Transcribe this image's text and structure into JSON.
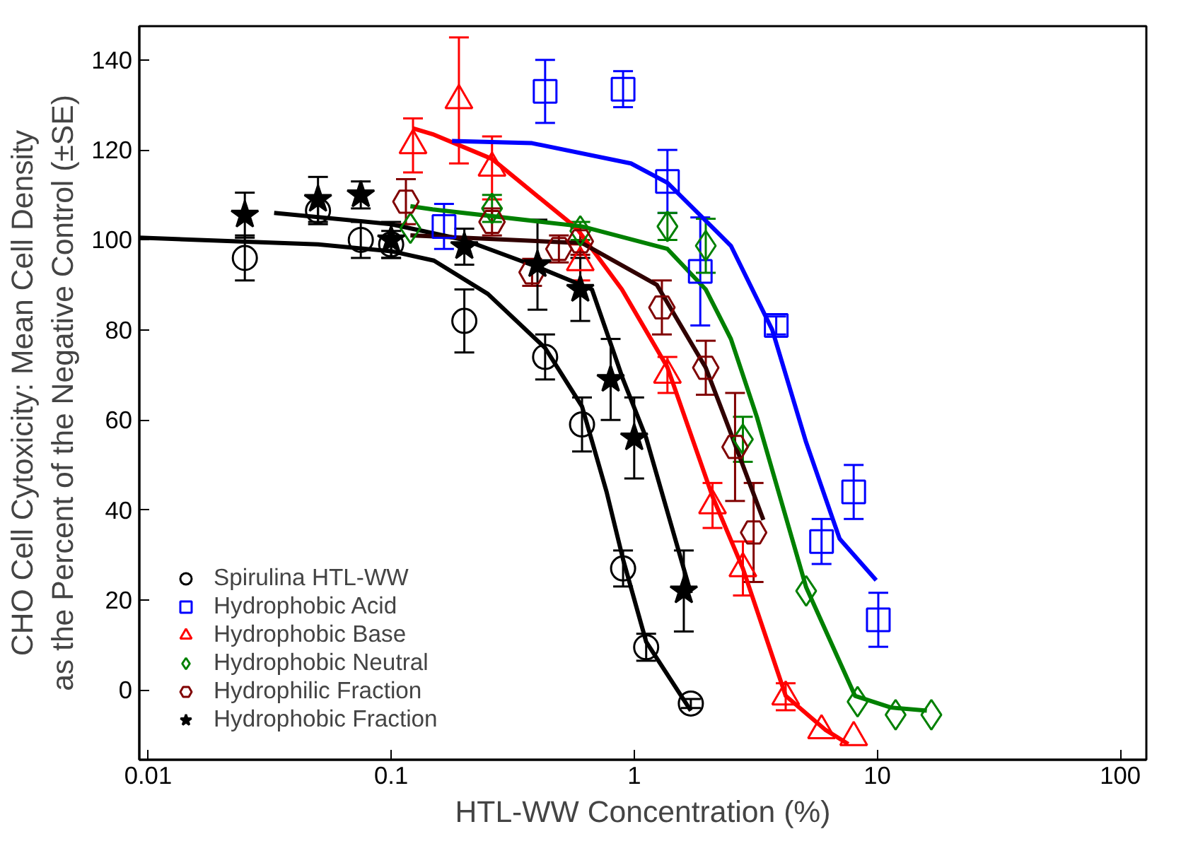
{
  "chart_data": {
    "type": "scatter",
    "xlabel": "HTL-WW Concentration (%)",
    "ylabel": "CHO Cell Cytoxicity: Mean Cell Density\nas the Percent of the Negative Control (±SE)",
    "log": "x",
    "grid": false,
    "legend": "bottom left",
    "xlim": [
      0.0092,
      128
    ],
    "ylim": [
      -15.5,
      147.5
    ],
    "xticks": [
      {
        "value": 0.01,
        "label": "0.01"
      },
      {
        "value": 0.1,
        "label": "0.1"
      },
      1,
      10,
      100
    ],
    "yticks": [
      0,
      20,
      40,
      60,
      80,
      100,
      120,
      140
    ],
    "series": [
      {
        "type": "line",
        "color": "#000000",
        "x": [
          0.0092,
          0.05,
          0.1,
          0.15,
          0.25,
          0.43,
          0.61,
          0.77,
          0.9,
          1.12,
          1.71
        ],
        "values": [
          100.5,
          99,
          97.5,
          95.4,
          88,
          76,
          63,
          44,
          29,
          10.7,
          -4.6
        ]
      },
      {
        "type": "line",
        "color": "#000000",
        "x": [
          0.033,
          0.1,
          0.2,
          0.4,
          0.67,
          0.9,
          1.12,
          1.71
        ],
        "values": [
          106,
          103.5,
          100,
          94,
          89,
          69,
          56,
          21.5
        ]
      },
      {
        "type": "line",
        "color": "#ff0000",
        "x": [
          0.123,
          0.148,
          0.26,
          0.58,
          0.89,
          1.37,
          2.1,
          2.8,
          4.2,
          6.1,
          7.6
        ],
        "values": [
          124.8,
          123.5,
          118,
          102.6,
          89,
          71.7,
          43,
          27,
          -1.3,
          -8.8,
          -12
        ]
      },
      {
        "type": "line",
        "color": "#0000ff",
        "x": [
          0.178,
          0.38,
          0.97,
          1.37,
          2.5,
          3.7,
          5.1,
          7.0,
          9.9
        ],
        "values": [
          122,
          121.5,
          117,
          112.7,
          98.7,
          80,
          55,
          33.6,
          24.4
        ]
      },
      {
        "type": "line",
        "color": "#008000",
        "x": [
          0.12,
          0.148,
          0.61,
          1.37,
          1.97,
          2.5,
          3.2,
          5.1,
          8.1,
          11.4,
          16
        ],
        "values": [
          107.5,
          106.8,
          103,
          98,
          89,
          78,
          60.6,
          22.8,
          -1.3,
          -3.9,
          -4.6
        ]
      },
      {
        "type": "line",
        "color": "#300000",
        "x": [
          0.12,
          0.61,
          1.24,
          1.97,
          2.5,
          3.4
        ],
        "values": [
          101,
          99.3,
          90,
          71.6,
          57,
          37.8
        ]
      },
      {
        "name": "Spirulina HTL-WW",
        "marker": "circle",
        "color": "#000000",
        "x": [
          0.025,
          0.05,
          0.075,
          0.1,
          0.2,
          0.43,
          0.61,
          0.9,
          1.12,
          1.71
        ],
        "values": [
          96,
          106.5,
          100,
          99,
          82,
          74,
          59,
          27,
          9.5,
          -3
        ],
        "errors": [
          5,
          3,
          4,
          3,
          7,
          5,
          6,
          4,
          3,
          1
        ]
      },
      {
        "name": "Hydrophobic Acid",
        "marker": "square",
        "color": "#0000ff",
        "x": [
          0.165,
          0.43,
          0.9,
          1.37,
          1.87,
          3.84,
          5.9,
          8.0,
          10.1
        ],
        "values": [
          103,
          133,
          133.5,
          113,
          93,
          81,
          33,
          44,
          15.6
        ],
        "errors": [
          5,
          7,
          4,
          7,
          12,
          2,
          5,
          6,
          6
        ]
      },
      {
        "name": "Hydrophobic Base",
        "marker": "triangle",
        "color": "#ff0000",
        "x": [
          0.123,
          0.19,
          0.26,
          0.6,
          1.37,
          2.1,
          2.8,
          4.2,
          5.9,
          8.0
        ],
        "values": [
          121,
          131,
          116,
          95,
          70,
          41,
          27,
          -1.5,
          -9,
          -10.5
        ],
        "errors": [
          6,
          14,
          7,
          4,
          4,
          5,
          6,
          3,
          null,
          null
        ]
      },
      {
        "name": "Hydrophobic Neutral",
        "marker": "diamond",
        "color": "#008000",
        "x": [
          0.12,
          0.26,
          0.6,
          1.37,
          1.97,
          2.8,
          5.1,
          8.3,
          11.9,
          16.7
        ],
        "values": [
          102.6,
          107,
          102,
          103,
          98.7,
          55.7,
          22,
          -2.6,
          -5.5,
          -5.5
        ],
        "errors": [
          null,
          3,
          2,
          3,
          6,
          5,
          null,
          null,
          null,
          null
        ]
      },
      {
        "name": "Hydrophilic Fraction",
        "color": "#800000",
        "x": [
          0.115,
          0.26,
          0.38,
          0.49,
          0.6,
          1.3,
          1.97,
          2.6,
          3.1
        ],
        "values": [
          108.5,
          104,
          92.8,
          98,
          99.7,
          85,
          71.6,
          54,
          35
        ],
        "errors": [
          5,
          3,
          3,
          3,
          3,
          6,
          6,
          12,
          11
        ]
      },
      {
        "name": "Hydrophobic Fraction",
        "marker": "star",
        "color": "#000000",
        "x": [
          0.025,
          0.05,
          0.075,
          0.1,
          0.2,
          0.4,
          0.6,
          0.8,
          1.0,
          1.6
        ],
        "values": [
          105.5,
          109,
          110,
          100,
          98.5,
          94.5,
          89,
          69,
          56,
          22
        ],
        "errors": [
          5,
          5,
          3,
          4,
          4,
          10,
          7,
          9,
          9,
          9
        ]
      }
    ]
  }
}
